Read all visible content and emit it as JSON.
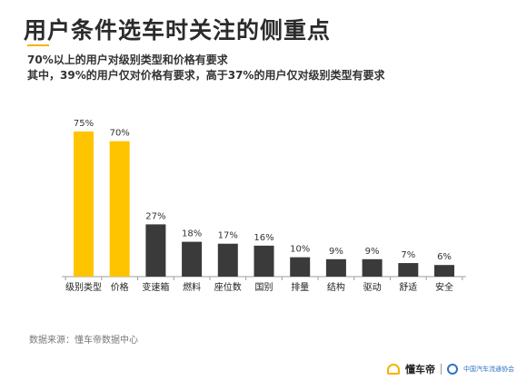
{
  "header": {
    "title": "用户条件选车时关注的侧重点",
    "subtitle_1": "70%以上的用户对级别类型和价格有要求",
    "subtitle_2": "其中，39%的用户仅对价格有要求，高于37%的用户仅对级别类型有要求"
  },
  "source": "数据来源：懂车帝数据中心",
  "footer": {
    "brand": "懂车帝",
    "org": "中国汽车流通协会"
  },
  "colors": {
    "highlight": "#FFC400",
    "default": "#3A3A3A",
    "axis": "#9E9E9E"
  },
  "chart_data": {
    "type": "bar",
    "categories": [
      "级别类型",
      "价格",
      "变速箱",
      "燃料",
      "座位数",
      "国别",
      "排量",
      "结构",
      "驱动",
      "舒适",
      "安全"
    ],
    "values": [
      75,
      70,
      27,
      18,
      17,
      16,
      10,
      9,
      9,
      7,
      6
    ],
    "value_labels": [
      "75%",
      "70%",
      "27%",
      "18%",
      "17%",
      "16%",
      "10%",
      "9%",
      "9%",
      "7%",
      "6%"
    ],
    "highlighted": [
      true,
      true,
      false,
      false,
      false,
      false,
      false,
      false,
      false,
      false,
      false
    ],
    "ylim": [
      0,
      75
    ],
    "grid": false,
    "xlabel": "",
    "ylabel": ""
  }
}
